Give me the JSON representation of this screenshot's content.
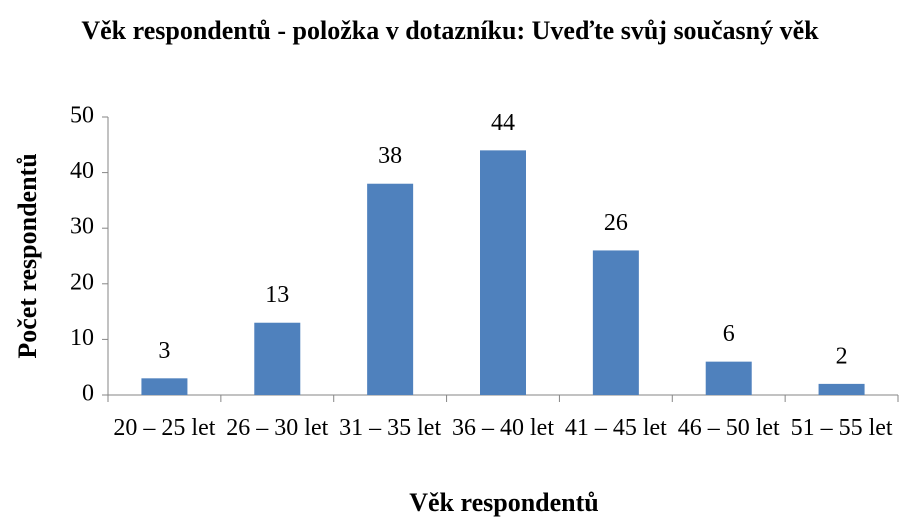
{
  "chart_data": {
    "type": "bar",
    "title": "Věk respondentů - položka v dotazníku: Uveďte svůj současný věk",
    "x_label": "Věk respondentů",
    "y_label": "Počet respondentů",
    "categories": [
      "20 – 25 let",
      "26 – 30 let",
      "31 – 35 let",
      "36 – 40 let",
      "41 – 45 let",
      "46 – 50 let",
      "51 – 55 let"
    ],
    "values": [
      3,
      13,
      38,
      44,
      26,
      6,
      2
    ],
    "color": "#4f81bd",
    "ylim": [
      0,
      50
    ],
    "yticks": [
      0,
      10,
      20,
      30,
      40,
      50
    ],
    "grid": false
  }
}
